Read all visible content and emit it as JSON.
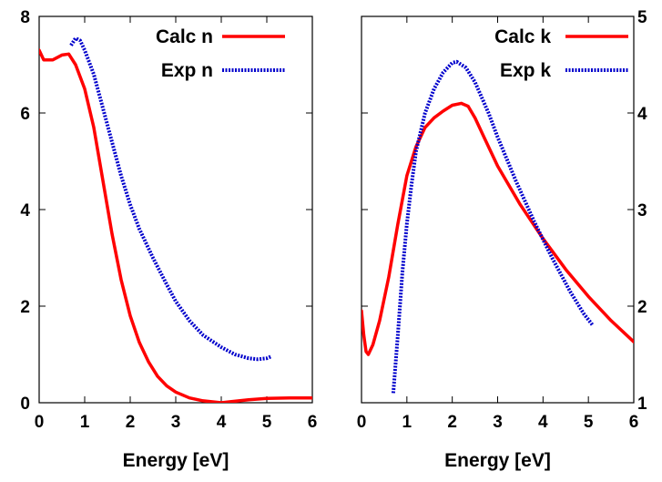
{
  "chart_data": [
    {
      "type": "line",
      "xlabel": "Energy [eV]",
      "ylabel": "",
      "xlim": [
        0,
        6
      ],
      "ylim": [
        0,
        8
      ],
      "xticks": [
        "0",
        "1",
        "2",
        "3",
        "4",
        "5",
        "6"
      ],
      "yticks": [
        "0",
        "2",
        "4",
        "6",
        "8"
      ],
      "y_axis_side": "left",
      "grid": false,
      "legend_position": "top-right",
      "series": [
        {
          "name": "Calc n",
          "color": "#ff0000",
          "style": "solid",
          "points": [
            [
              0.0,
              7.3
            ],
            [
              0.1,
              7.1
            ],
            [
              0.3,
              7.1
            ],
            [
              0.5,
              7.2
            ],
            [
              0.65,
              7.22
            ],
            [
              0.8,
              7.0
            ],
            [
              1.0,
              6.5
            ],
            [
              1.2,
              5.7
            ],
            [
              1.4,
              4.6
            ],
            [
              1.6,
              3.5
            ],
            [
              1.8,
              2.55
            ],
            [
              2.0,
              1.8
            ],
            [
              2.2,
              1.25
            ],
            [
              2.4,
              0.85
            ],
            [
              2.6,
              0.55
            ],
            [
              2.8,
              0.35
            ],
            [
              3.0,
              0.22
            ],
            [
              3.3,
              0.1
            ],
            [
              3.6,
              0.04
            ],
            [
              4.0,
              0.0
            ],
            [
              4.2,
              0.02
            ],
            [
              4.6,
              0.06
            ],
            [
              5.0,
              0.09
            ],
            [
              5.5,
              0.1
            ],
            [
              6.0,
              0.1
            ]
          ]
        },
        {
          "name": "Exp n",
          "color": "#0000cc",
          "style": "dotted",
          "points": [
            [
              0.7,
              7.4
            ],
            [
              0.8,
              7.55
            ],
            [
              0.9,
              7.5
            ],
            [
              1.0,
              7.3
            ],
            [
              1.2,
              6.8
            ],
            [
              1.4,
              6.1
            ],
            [
              1.6,
              5.4
            ],
            [
              1.8,
              4.7
            ],
            [
              2.0,
              4.1
            ],
            [
              2.2,
              3.6
            ],
            [
              2.5,
              3.0
            ],
            [
              2.8,
              2.45
            ],
            [
              3.0,
              2.1
            ],
            [
              3.3,
              1.7
            ],
            [
              3.6,
              1.4
            ],
            [
              4.0,
              1.15
            ],
            [
              4.3,
              1.0
            ],
            [
              4.6,
              0.92
            ],
            [
              4.8,
              0.9
            ],
            [
              5.0,
              0.92
            ],
            [
              5.1,
              0.96
            ]
          ]
        }
      ]
    },
    {
      "type": "line",
      "xlabel": "Energy [eV]",
      "ylabel": "",
      "xlim": [
        0,
        6
      ],
      "ylim": [
        1,
        5
      ],
      "xticks": [
        "0",
        "1",
        "2",
        "3",
        "4",
        "5",
        "6"
      ],
      "yticks": [
        "1",
        "2",
        "3",
        "4",
        "5"
      ],
      "y_axis_side": "right",
      "grid": false,
      "legend_position": "top-right",
      "series": [
        {
          "name": "Calc k",
          "color": "#ff0000",
          "style": "solid",
          "points": [
            [
              0.0,
              1.95
            ],
            [
              0.05,
              1.7
            ],
            [
              0.1,
              1.53
            ],
            [
              0.15,
              1.5
            ],
            [
              0.25,
              1.6
            ],
            [
              0.4,
              1.85
            ],
            [
              0.6,
              2.3
            ],
            [
              0.8,
              2.85
            ],
            [
              1.0,
              3.35
            ],
            [
              1.2,
              3.65
            ],
            [
              1.4,
              3.85
            ],
            [
              1.6,
              3.95
            ],
            [
              1.8,
              4.02
            ],
            [
              2.0,
              4.08
            ],
            [
              2.2,
              4.1
            ],
            [
              2.35,
              4.07
            ],
            [
              2.5,
              3.95
            ],
            [
              2.7,
              3.75
            ],
            [
              3.0,
              3.45
            ],
            [
              3.5,
              3.05
            ],
            [
              4.0,
              2.7
            ],
            [
              4.5,
              2.38
            ],
            [
              5.0,
              2.1
            ],
            [
              5.5,
              1.85
            ],
            [
              6.0,
              1.63
            ]
          ]
        },
        {
          "name": "Exp k",
          "color": "#0000cc",
          "style": "dotted",
          "points": [
            [
              0.7,
              1.1
            ],
            [
              0.8,
              1.7
            ],
            [
              0.9,
              2.35
            ],
            [
              1.0,
              2.85
            ],
            [
              1.1,
              3.25
            ],
            [
              1.2,
              3.6
            ],
            [
              1.4,
              4.0
            ],
            [
              1.6,
              4.25
            ],
            [
              1.8,
              4.42
            ],
            [
              2.0,
              4.52
            ],
            [
              2.1,
              4.53
            ],
            [
              2.3,
              4.47
            ],
            [
              2.5,
              4.32
            ],
            [
              2.8,
              4.0
            ],
            [
              3.0,
              3.75
            ],
            [
              3.4,
              3.3
            ],
            [
              3.8,
              2.88
            ],
            [
              4.2,
              2.5
            ],
            [
              4.6,
              2.15
            ],
            [
              4.9,
              1.92
            ],
            [
              5.1,
              1.8
            ]
          ]
        }
      ]
    }
  ]
}
